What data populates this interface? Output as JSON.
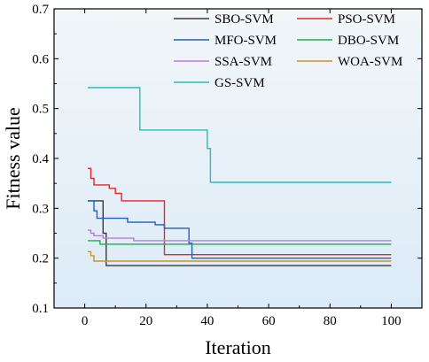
{
  "chart_data": {
    "type": "line",
    "title": "",
    "xlabel": "Iteration",
    "ylabel": "Fitness value",
    "xlim": [
      -10,
      110
    ],
    "ylim": [
      0.1,
      0.7
    ],
    "xticks": [
      0,
      20,
      40,
      60,
      80,
      100
    ],
    "yticks": [
      0.1,
      0.2,
      0.3,
      0.4,
      0.5,
      0.6,
      0.7
    ],
    "xtick_labels": [
      "0",
      "20",
      "40",
      "60",
      "80",
      "100"
    ],
    "ytick_labels": [
      "0.1",
      "0.2",
      "0.3",
      "0.4",
      "0.5",
      "0.6",
      "0.7"
    ],
    "grid": false,
    "background": "gradient-light-blue",
    "legend": {
      "position": "top-right",
      "columns": 2
    },
    "series": [
      {
        "name": "SBO-SVM",
        "color": "#3a3a3a",
        "x": [
          1,
          6,
          6,
          7,
          7,
          100
        ],
        "y": [
          0.315,
          0.315,
          0.25,
          0.25,
          0.185,
          0.185
        ]
      },
      {
        "name": "PSO-SVM",
        "color": "#e8262b",
        "x": [
          1,
          2,
          2,
          3,
          3,
          8,
          8,
          10,
          10,
          12,
          12,
          26,
          26,
          100
        ],
        "y": [
          0.38,
          0.38,
          0.36,
          0.36,
          0.347,
          0.347,
          0.34,
          0.34,
          0.33,
          0.33,
          0.315,
          0.315,
          0.207,
          0.207
        ]
      },
      {
        "name": "MFO-SVM",
        "color": "#1f5fc2",
        "x": [
          1,
          3,
          3,
          4,
          4,
          14,
          14,
          23,
          23,
          26,
          26,
          34,
          34,
          35,
          35,
          100
        ],
        "y": [
          0.315,
          0.315,
          0.295,
          0.295,
          0.28,
          0.28,
          0.272,
          0.272,
          0.267,
          0.267,
          0.26,
          0.26,
          0.23,
          0.23,
          0.2,
          0.2
        ]
      },
      {
        "name": "DBO-SVM",
        "color": "#1faf4b",
        "x": [
          1,
          5,
          5,
          100
        ],
        "y": [
          0.235,
          0.235,
          0.228,
          0.228
        ]
      },
      {
        "name": "SSA-SVM",
        "color": "#b77be0",
        "x": [
          1,
          2,
          2,
          3,
          3,
          6,
          6,
          16,
          16,
          100
        ],
        "y": [
          0.256,
          0.256,
          0.25,
          0.25,
          0.245,
          0.245,
          0.24,
          0.24,
          0.235,
          0.235
        ]
      },
      {
        "name": "WOA-SVM",
        "color": "#c8952a",
        "x": [
          1,
          2,
          2,
          3,
          3,
          100
        ],
        "y": [
          0.213,
          0.213,
          0.205,
          0.205,
          0.194,
          0.194
        ]
      },
      {
        "name": "GS-SVM",
        "color": "#2bbbbb",
        "x": [
          1,
          18,
          18,
          40,
          40,
          41,
          41,
          100
        ],
        "y": [
          0.542,
          0.542,
          0.457,
          0.457,
          0.42,
          0.42,
          0.352,
          0.352
        ]
      }
    ]
  }
}
